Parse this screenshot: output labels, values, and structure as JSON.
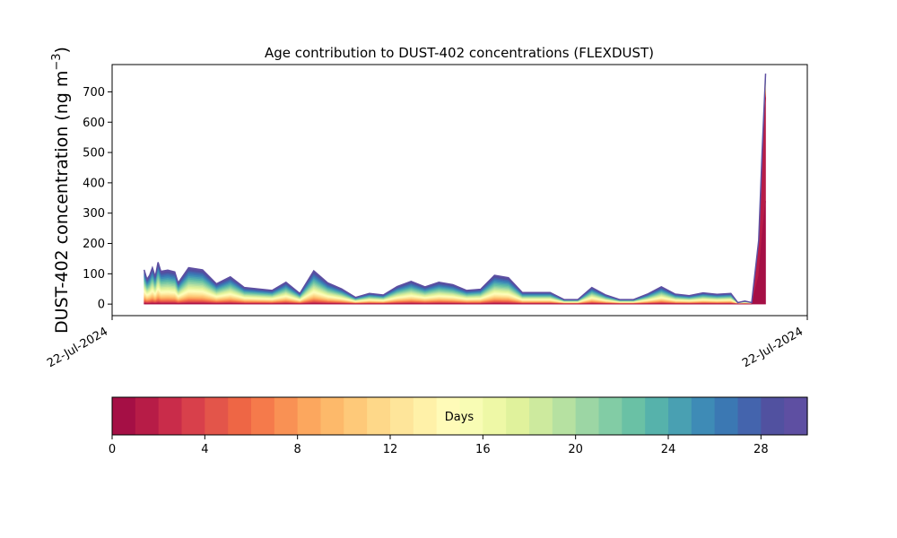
{
  "chart_data": {
    "type": "area",
    "title": "Age contribution to DUST-402 concentrations (FLEXDUST)",
    "ylabel_main": "DUST-402 concentration (ng m",
    "ylabel_exp": "−3",
    "ylabel_close": ")",
    "xlabel": "",
    "ylim": [
      -38,
      790
    ],
    "yticks": [
      0,
      100,
      200,
      300,
      400,
      500,
      600,
      700
    ],
    "xtick_labels": [
      "22-Jul-2024",
      "22-Jul-2024"
    ],
    "xlim": [
      0,
      1
    ],
    "grid": false,
    "x": [
      0.046,
      0.05,
      0.054,
      0.058,
      0.062,
      0.066,
      0.07,
      0.08,
      0.09,
      0.095,
      0.11,
      0.13,
      0.15,
      0.17,
      0.19,
      0.23,
      0.25,
      0.27,
      0.29,
      0.31,
      0.33,
      0.35,
      0.37,
      0.39,
      0.41,
      0.43,
      0.45,
      0.47,
      0.49,
      0.51,
      0.53,
      0.55,
      0.57,
      0.59,
      0.61,
      0.63,
      0.65,
      0.67,
      0.69,
      0.71,
      0.73,
      0.75,
      0.77,
      0.79,
      0.81,
      0.83,
      0.85,
      0.87,
      0.89,
      0.9,
      0.91,
      0.92,
      0.93,
      0.935,
      0.94
    ],
    "total": [
      113,
      82,
      95,
      120,
      90,
      138,
      108,
      112,
      106,
      70,
      120,
      113,
      67,
      90,
      55,
      45,
      72,
      35,
      110,
      70,
      50,
      22,
      35,
      30,
      58,
      75,
      57,
      72,
      64,
      45,
      49,
      95,
      87,
      38,
      38,
      38,
      15,
      15,
      55,
      30,
      15,
      15,
      33,
      57,
      33,
      28,
      37,
      32,
      35,
      5,
      10,
      5,
      210,
      500,
      760
    ],
    "colorbar": {
      "label": "Days",
      "min": 0,
      "max": 30,
      "ticks": [
        0,
        4,
        8,
        12,
        16,
        20,
        24,
        28
      ],
      "colors": [
        "#a50f45",
        "#b71c47",
        "#c92c4a",
        "#d8404b",
        "#e3554a",
        "#ee6645",
        "#f57a4b",
        "#f99154",
        "#fca75e",
        "#fdb96a",
        "#fec979",
        "#fed889",
        "#fee59a",
        "#fff1a8",
        "#fffbb8",
        "#f8fcb4",
        "#eef8a6",
        "#e0f29c",
        "#cdea9e",
        "#b6e1a1",
        "#9cd6a4",
        "#82cca5",
        "#6ac1a5",
        "#56b2ab",
        "#49a0b2",
        "#3e8bb6",
        "#3b78b3",
        "#4464ad",
        "#5151a0",
        "#5e4fa2"
      ]
    }
  }
}
